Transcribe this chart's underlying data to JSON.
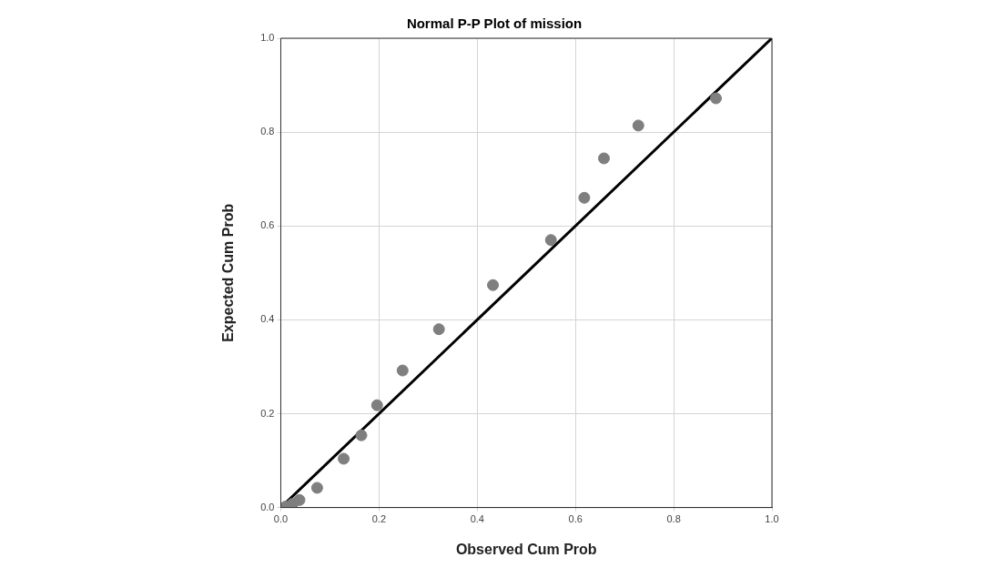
{
  "chart_data": {
    "type": "scatter",
    "title": "Normal P-P Plot of mission",
    "xlabel": "Observed Cum Prob",
    "ylabel": "Expected Cum Prob",
    "series": [
      {
        "type": "scatter",
        "marker": "circle",
        "color": "#7f7f7f",
        "x": [
          0.01,
          0.024,
          0.038,
          0.074,
          0.128,
          0.164,
          0.196,
          0.248,
          0.322,
          0.432,
          0.55,
          0.618,
          0.658,
          0.728,
          0.886
        ],
        "values": [
          0.002,
          0.008,
          0.016,
          0.042,
          0.104,
          0.154,
          0.218,
          0.292,
          0.38,
          0.474,
          0.57,
          0.66,
          0.744,
          0.814,
          0.872
        ]
      },
      {
        "type": "line",
        "marker": "none",
        "line_style": "solid",
        "color": "#000000",
        "x": [
          0,
          1
        ],
        "values": [
          0,
          1
        ]
      }
    ],
    "xlim": [
      0,
      1
    ],
    "ylim": [
      0,
      1
    ],
    "xticks": [
      {
        "value": 0,
        "label": "0.0"
      },
      0.2,
      0.4,
      0.6,
      0.8,
      {
        "value": 1,
        "label": "1.0"
      }
    ],
    "yticks": [
      {
        "value": 0,
        "label": "0.0"
      },
      0.2,
      0.4,
      0.6,
      0.8,
      {
        "value": 1,
        "label": "1.0"
      }
    ],
    "grid": true,
    "legend": false
  }
}
